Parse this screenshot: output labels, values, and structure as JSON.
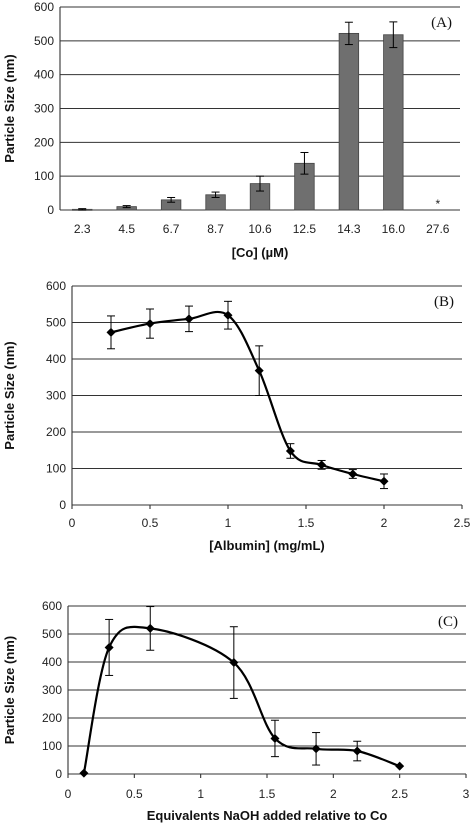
{
  "chart_data": [
    {
      "type": "bar",
      "panel_label": "(A)",
      "xlabel": "[Co] (µM)",
      "ylabel": "Particle Size (nm)",
      "categories": [
        "2.3",
        "4.5",
        "6.7",
        "8.7",
        "10.6",
        "12.5",
        "14.3",
        "16.0",
        "27.6"
      ],
      "values": [
        2,
        10,
        30,
        45,
        78,
        138,
        522,
        518,
        null
      ],
      "errors": [
        2,
        3,
        7,
        8,
        22,
        32,
        33,
        38,
        null
      ],
      "annotations": [
        {
          "category": "27.6",
          "text": "*"
        }
      ],
      "ylim": [
        0,
        600
      ],
      "yticks": [
        0,
        100,
        200,
        300,
        400,
        500,
        600
      ],
      "grid": true,
      "legend": "none",
      "bar_color": "#6f6f6f"
    },
    {
      "type": "line",
      "panel_label": "(B)",
      "xlabel": "[Albumin] (mg/mL)",
      "ylabel": "Particle Size (nm)",
      "x": [
        0.25,
        0.5,
        0.75,
        1.0,
        1.2,
        1.4,
        1.6,
        1.8,
        2.0
      ],
      "y": [
        473,
        497,
        510,
        520,
        368,
        148,
        110,
        85,
        65
      ],
      "errors": [
        45,
        40,
        35,
        38,
        68,
        20,
        12,
        12,
        20
      ],
      "xlim": [
        0,
        2.5
      ],
      "xticks": [
        "0",
        "0.5",
        "1",
        "1.5",
        "2",
        "2.5"
      ],
      "ylim": [
        0,
        600
      ],
      "yticks": [
        0,
        100,
        200,
        300,
        400,
        500,
        600
      ],
      "grid": true,
      "legend": "none",
      "marker": "diamond",
      "line_color": "#000000"
    },
    {
      "type": "line",
      "panel_label": "(C)",
      "xlabel": "Equivalents NaOH added relative to Co",
      "ylabel": "Particle Size (nm)",
      "x": [
        0.12,
        0.31,
        0.62,
        1.25,
        1.56,
        1.87,
        2.18,
        2.5
      ],
      "y": [
        3,
        452,
        520,
        398,
        127,
        90,
        82,
        28
      ],
      "errors": [
        0,
        100,
        78,
        128,
        65,
        58,
        35,
        0
      ],
      "xlim": [
        0,
        3
      ],
      "xticks": [
        "0",
        "0.5",
        "1",
        "1.5",
        "2",
        "2.5",
        "3"
      ],
      "ylim": [
        0,
        600
      ],
      "yticks": [
        0,
        100,
        200,
        300,
        400,
        500,
        600
      ],
      "grid": true,
      "legend": "none",
      "marker": "diamond",
      "line_color": "#000000"
    }
  ]
}
